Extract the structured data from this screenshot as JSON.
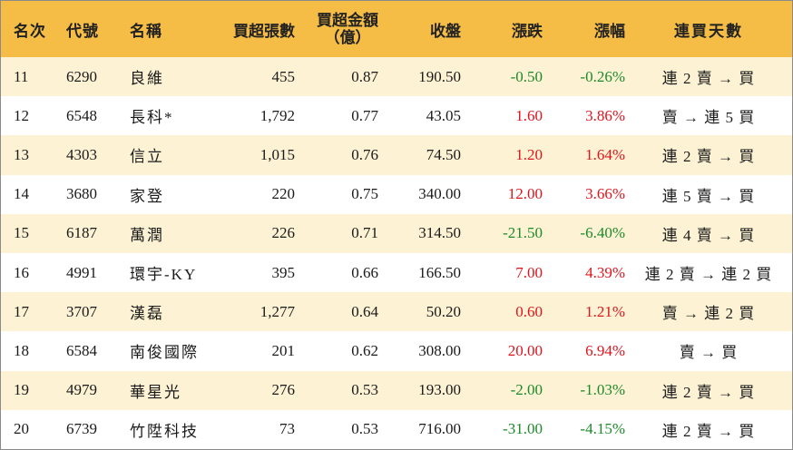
{
  "headers": {
    "rank": "名次",
    "code": "代號",
    "name": "名稱",
    "net_buy_lots": "買超張數",
    "net_buy_amount_line1": "買超金額",
    "net_buy_amount_line2": "（億）",
    "close": "收盤",
    "change": "漲跌",
    "change_pct": "漲幅",
    "consecutive_days": "連買天數"
  },
  "colors": {
    "header_bg": "#f5bd45",
    "stripe_bg": "#fdf2d4",
    "up": "#e0141c",
    "down": "#1d8a2a"
  },
  "rows": [
    {
      "rank": "11",
      "code": "6290",
      "name": "良維",
      "lots": "455",
      "amount": "0.87",
      "close": "190.50",
      "change": "-0.50",
      "pct": "-0.26%",
      "days": "連 2 賣 → 買",
      "dir": "down"
    },
    {
      "rank": "12",
      "code": "6548",
      "name": "長科*",
      "lots": "1,792",
      "amount": "0.77",
      "close": "43.05",
      "change": "1.60",
      "pct": "3.86%",
      "days": "賣 → 連 5 買",
      "dir": "up"
    },
    {
      "rank": "13",
      "code": "4303",
      "name": "信立",
      "lots": "1,015",
      "amount": "0.76",
      "close": "74.50",
      "change": "1.20",
      "pct": "1.64%",
      "days": "連 2 賣 → 買",
      "dir": "up"
    },
    {
      "rank": "14",
      "code": "3680",
      "name": "家登",
      "lots": "220",
      "amount": "0.75",
      "close": "340.00",
      "change": "12.00",
      "pct": "3.66%",
      "days": "連 5 賣 → 買",
      "dir": "up"
    },
    {
      "rank": "15",
      "code": "6187",
      "name": "萬潤",
      "lots": "226",
      "amount": "0.71",
      "close": "314.50",
      "change": "-21.50",
      "pct": "-6.40%",
      "days": "連 4 賣 → 買",
      "dir": "down"
    },
    {
      "rank": "16",
      "code": "4991",
      "name": "環宇-KY",
      "lots": "395",
      "amount": "0.66",
      "close": "166.50",
      "change": "7.00",
      "pct": "4.39%",
      "days": "連 2 賣 → 連 2 買",
      "dir": "up"
    },
    {
      "rank": "17",
      "code": "3707",
      "name": "漢磊",
      "lots": "1,277",
      "amount": "0.64",
      "close": "50.20",
      "change": "0.60",
      "pct": "1.21%",
      "days": "賣 → 連 2 買",
      "dir": "up"
    },
    {
      "rank": "18",
      "code": "6584",
      "name": "南俊國際",
      "lots": "201",
      "amount": "0.62",
      "close": "308.00",
      "change": "20.00",
      "pct": "6.94%",
      "days": "賣 → 買",
      "dir": "up"
    },
    {
      "rank": "19",
      "code": "4979",
      "name": "華星光",
      "lots": "276",
      "amount": "0.53",
      "close": "193.00",
      "change": "-2.00",
      "pct": "-1.03%",
      "days": "連 2 賣 → 買",
      "dir": "down"
    },
    {
      "rank": "20",
      "code": "6739",
      "name": "竹陞科技",
      "lots": "73",
      "amount": "0.53",
      "close": "716.00",
      "change": "-31.00",
      "pct": "-4.15%",
      "days": "連 2 賣 → 買",
      "dir": "down"
    }
  ]
}
